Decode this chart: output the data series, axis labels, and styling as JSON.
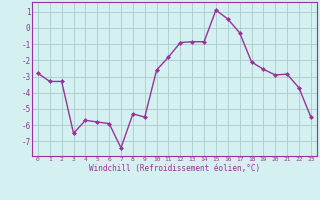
{
  "x": [
    0,
    1,
    2,
    3,
    4,
    5,
    6,
    7,
    8,
    9,
    10,
    11,
    12,
    13,
    14,
    15,
    16,
    17,
    18,
    19,
    20,
    21,
    22,
    23
  ],
  "y": [
    -2.8,
    -3.3,
    -3.3,
    -6.5,
    -5.7,
    -5.8,
    -5.9,
    -7.4,
    -5.3,
    -5.5,
    -2.6,
    -1.8,
    -0.9,
    -0.85,
    -0.85,
    1.1,
    0.55,
    -0.3,
    -2.1,
    -2.55,
    -2.9,
    -2.85,
    -3.7,
    -5.5
  ],
  "line_color": "#993399",
  "marker": "D",
  "marker_size": 2,
  "bg_color": "#d4f0f0",
  "grid_color": "#aacccc",
  "xlabel": "Windchill (Refroidissement éolien,°C)",
  "xlabel_color": "#993399",
  "tick_color": "#993399",
  "ylim": [
    -7.9,
    1.6
  ],
  "yticks": [
    1,
    0,
    -1,
    -2,
    -3,
    -4,
    -5,
    -6,
    -7
  ],
  "xticks": [
    0,
    1,
    2,
    3,
    4,
    5,
    6,
    7,
    8,
    9,
    10,
    11,
    12,
    13,
    14,
    15,
    16,
    17,
    18,
    19,
    20,
    21,
    22,
    23
  ],
  "line_width": 1.0,
  "spine_color": "#993399"
}
